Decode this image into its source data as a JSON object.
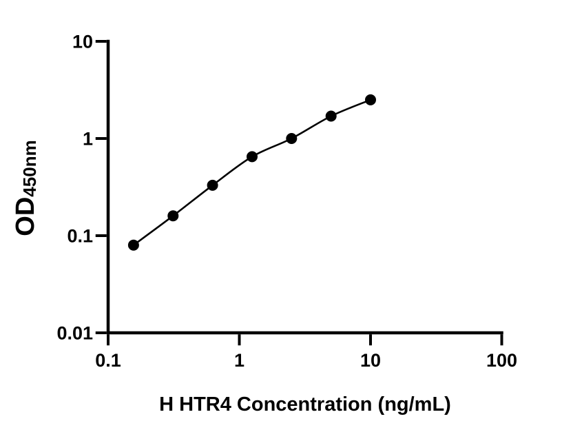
{
  "figure": {
    "background": "#ffffff",
    "ink_color": "#000000"
  },
  "chart_data": {
    "type": "scatter",
    "subtype": "elisa-standard-curve",
    "xlabel": "H HTR4 Concentration (ng/mL)",
    "ylabel_main": "OD",
    "ylabel_sub": "450nm",
    "x_scale": "log10",
    "y_scale": "log10",
    "xlim": [
      0.1,
      100
    ],
    "ylim": [
      0.01,
      10
    ],
    "grid": false,
    "legend": "none",
    "x_ticks": [
      {
        "value": 0.1,
        "label": "0.1"
      },
      {
        "value": 1,
        "label": "1"
      },
      {
        "value": 10,
        "label": "10"
      },
      {
        "value": 100,
        "label": "100"
      }
    ],
    "y_ticks": [
      {
        "value": 0.01,
        "label": "0.01"
      },
      {
        "value": 0.1,
        "label": "0.1"
      },
      {
        "value": 1,
        "label": "1"
      },
      {
        "value": 10,
        "label": "10"
      }
    ],
    "series": [
      {
        "name": "H HTR4 standard curve",
        "marker": "filled-circle",
        "line": "fitted-curve",
        "color": "#000000",
        "points": [
          {
            "x": 0.15625,
            "y": 0.08
          },
          {
            "x": 0.3125,
            "y": 0.16
          },
          {
            "x": 0.625,
            "y": 0.33
          },
          {
            "x": 1.25,
            "y": 0.65
          },
          {
            "x": 2.5,
            "y": 1.0
          },
          {
            "x": 5,
            "y": 1.7
          },
          {
            "x": 10,
            "y": 2.5
          }
        ]
      }
    ]
  }
}
